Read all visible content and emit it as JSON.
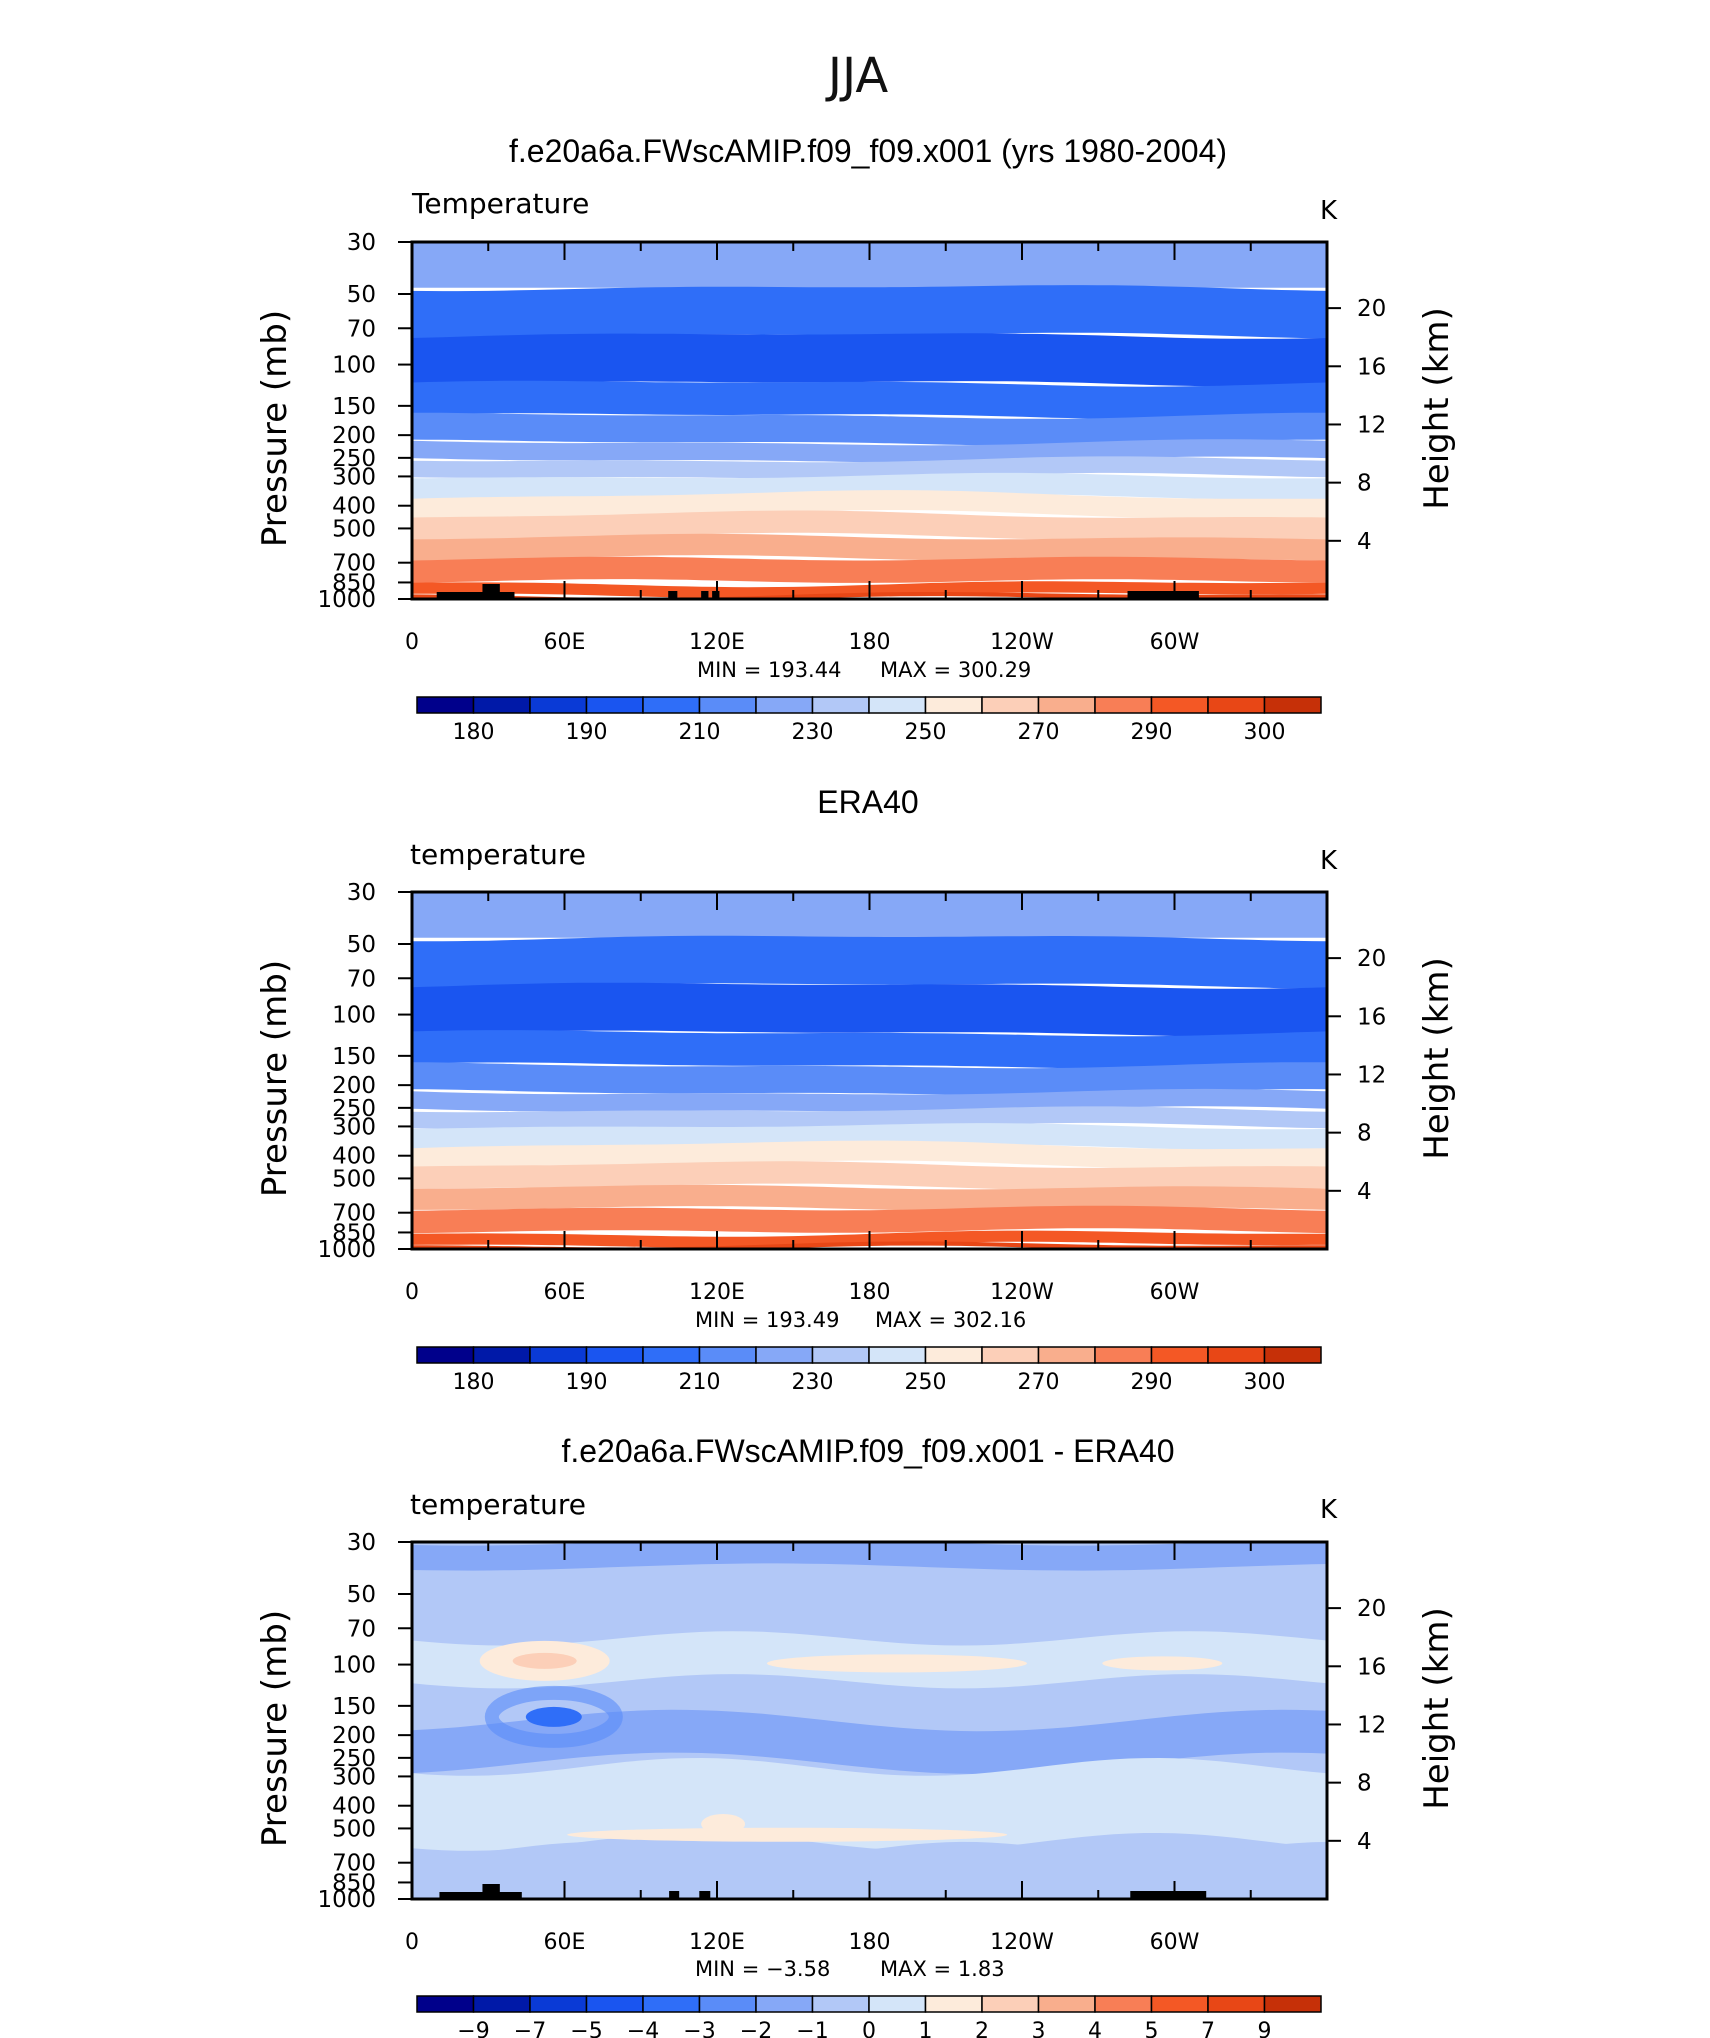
{
  "page_title": "JJA",
  "colors": {
    "temp_bar": [
      "#00008b",
      "#0019a8",
      "#0a3ad6",
      "#1a55f0",
      "#2f6ef8",
      "#5a8cf8",
      "#86a8f7",
      "#b2c8f7",
      "#d4e5f9",
      "#fdebdb",
      "#fccfb8",
      "#f9ae8d",
      "#f87e56",
      "#f45825",
      "#e84716",
      "#c63008",
      "#9c1c05",
      "#7a0000"
    ],
    "diff_bar": [
      "#00008b",
      "#0019a8",
      "#0a3ad6",
      "#1a55f0",
      "#2f6ef8",
      "#5a8cf8",
      "#86a8f7",
      "#b2c8f7",
      "#d4e5f9",
      "#fdebdb",
      "#fccfb8",
      "#f9ae8d",
      "#f87e56",
      "#f45825",
      "#e84716",
      "#c63008",
      "#9c1c05",
      "#7a0000"
    ]
  },
  "common": {
    "left_axis_title": "Pressure (mb)",
    "right_axis_title": "Height (km)",
    "units": "K",
    "x_ticks": [
      "0",
      "60E",
      "120E",
      "180",
      "120W",
      "60W"
    ],
    "p_ticks": [
      "30",
      "50",
      "70",
      "100",
      "150",
      "200",
      "250",
      "300",
      "400",
      "500",
      "700",
      "850",
      "1000"
    ],
    "h_ticks": [
      "20",
      "16",
      "12",
      "8",
      "4"
    ],
    "temp_cb_labels": [
      "180",
      "190",
      "210",
      "230",
      "250",
      "270",
      "290",
      "300"
    ],
    "diff_cb_labels": [
      "−9",
      "−7",
      "−5",
      "−4",
      "−3",
      "−2",
      "−1",
      "0",
      "1",
      "2",
      "3",
      "4",
      "5",
      "7",
      "9"
    ]
  },
  "panels": [
    {
      "title": "f.e20a6a.FWscAMIP.f09_f09.x001 (yrs 1980-2004)",
      "variable": "Temperature",
      "min_label": "MIN  =  193.44",
      "max_label": "MAX  =  300.29"
    },
    {
      "title": "ERA40",
      "variable": "temperature",
      "min_label": "MIN  =  193.49",
      "max_label": "MAX  =  302.16"
    },
    {
      "title": "f.e20a6a.FWscAMIP.f09_f09.x001 - ERA40",
      "variable": "temperature",
      "min_label": "MIN  =    −3.58",
      "max_label": "MAX  =     1.83"
    }
  ],
  "chart_data": [
    {
      "type": "heatmap",
      "title": "f.e20a6a.FWscAMIP.f09_f09.x001 (yrs 1980-2004)",
      "subtitle": "Temperature",
      "ylabel": "Pressure (mb)",
      "y2label": "Height (km)",
      "units": "K",
      "x": [
        "0",
        "60E",
        "120E",
        "180",
        "120W",
        "60W"
      ],
      "y_pressure": [
        30,
        50,
        70,
        100,
        150,
        200,
        250,
        300,
        400,
        500,
        700,
        850,
        1000
      ],
      "contour_levels": [
        180,
        190,
        210,
        230,
        250,
        270,
        290,
        300
      ],
      "band_colors": [
        "#86a8f7",
        "#2f6ef8",
        "#1a55f0",
        "#2f6ef8",
        "#5a8cf8",
        "#86a8f7",
        "#b2c8f7",
        "#d4e5f9",
        "#fdebdb",
        "#fccfb8",
        "#f9ae8d",
        "#f87e56",
        "#f45825",
        "#e84716"
      ],
      "min": 193.44,
      "max": 300.29
    },
    {
      "type": "heatmap",
      "title": "ERA40",
      "subtitle": "temperature",
      "ylabel": "Pressure (mb)",
      "y2label": "Height (km)",
      "units": "K",
      "x": [
        "0",
        "60E",
        "120E",
        "180",
        "120W",
        "60W"
      ],
      "y_pressure": [
        30,
        50,
        70,
        100,
        150,
        200,
        250,
        300,
        400,
        500,
        700,
        850,
        1000
      ],
      "contour_levels": [
        180,
        190,
        210,
        230,
        250,
        270,
        290,
        300
      ],
      "band_colors": [
        "#86a8f7",
        "#2f6ef8",
        "#1a55f0",
        "#2f6ef8",
        "#5a8cf8",
        "#86a8f7",
        "#b2c8f7",
        "#d4e5f9",
        "#fdebdb",
        "#fccfb8",
        "#f9ae8d",
        "#f87e56",
        "#f45825",
        "#e84716"
      ],
      "min": 193.49,
      "max": 302.16
    },
    {
      "type": "heatmap",
      "title": "f.e20a6a.FWscAMIP.f09_f09.x001 - ERA40",
      "subtitle": "temperature",
      "ylabel": "Pressure (mb)",
      "y2label": "Height (km)",
      "units": "K",
      "x": [
        "0",
        "60E",
        "120E",
        "180",
        "120W",
        "60W"
      ],
      "y_pressure": [
        30,
        50,
        70,
        100,
        150,
        200,
        250,
        300,
        400,
        500,
        700,
        850,
        1000
      ],
      "contour_levels": [
        -9,
        -7,
        -5,
        -4,
        -3,
        -2,
        -1,
        0,
        1,
        2,
        3,
        4,
        5,
        7,
        9
      ],
      "band_colors": [
        "#86a8f7",
        "#b2c8f7",
        "#5a8cf8",
        "#b2c8f7",
        "#d4e5f9",
        "#b2c8f7",
        "#d4e5f9",
        "#b2c8f7"
      ],
      "min": -3.58,
      "max": 1.83
    }
  ]
}
